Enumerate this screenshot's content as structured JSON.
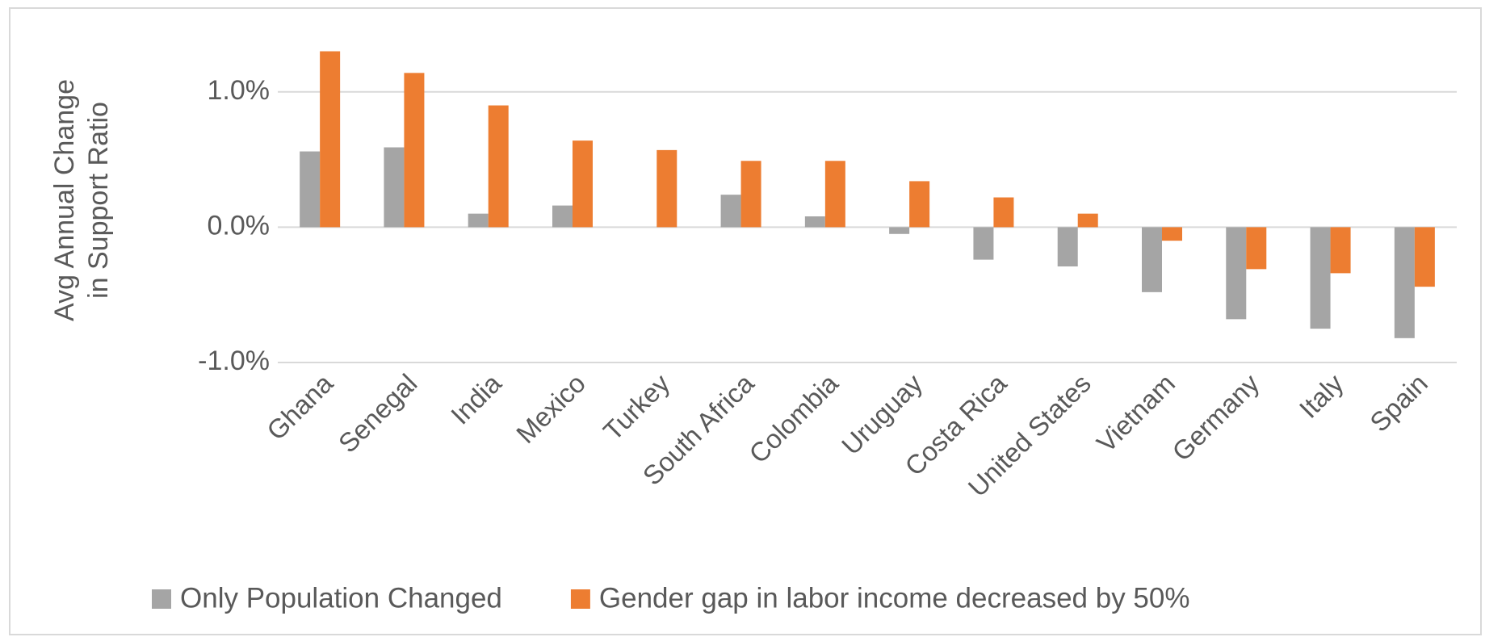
{
  "chart_data": {
    "type": "bar",
    "ylabel": [
      "Avg Annual Change",
      "in Support  Ratio"
    ],
    "categories": [
      "Ghana",
      "Senegal",
      "India",
      "Mexico",
      "Turkey",
      "South Africa",
      "Colombia",
      "Uruguay",
      "Costa Rica",
      "United States",
      "Vietnam",
      "Germany",
      "Italy",
      "Spain"
    ],
    "series": [
      {
        "name": "Only Population Changed",
        "color": "#a5a5a5",
        "values": [
          0.56,
          0.59,
          0.1,
          0.16,
          0,
          0.24,
          0.08,
          -0.05,
          -0.24,
          -0.29,
          -0.48,
          -0.68,
          -0.75,
          -0.82
        ]
      },
      {
        "name": "Gender gap in labor income decreased by 50%",
        "color": "#ed7d31",
        "values": [
          1.3,
          1.14,
          0.9,
          0.64,
          0.57,
          0.49,
          0.49,
          0.34,
          0.22,
          0.1,
          -0.1,
          -0.31,
          -0.34,
          -0.44
        ]
      }
    ],
    "ylim": [
      -1,
      1.5
    ],
    "yticks": [
      {
        "value": -1,
        "label": "-1.0%"
      },
      {
        "value": 0,
        "label": "0.0%"
      },
      {
        "value": 1,
        "label": "1.0%"
      }
    ],
    "grid": true
  }
}
